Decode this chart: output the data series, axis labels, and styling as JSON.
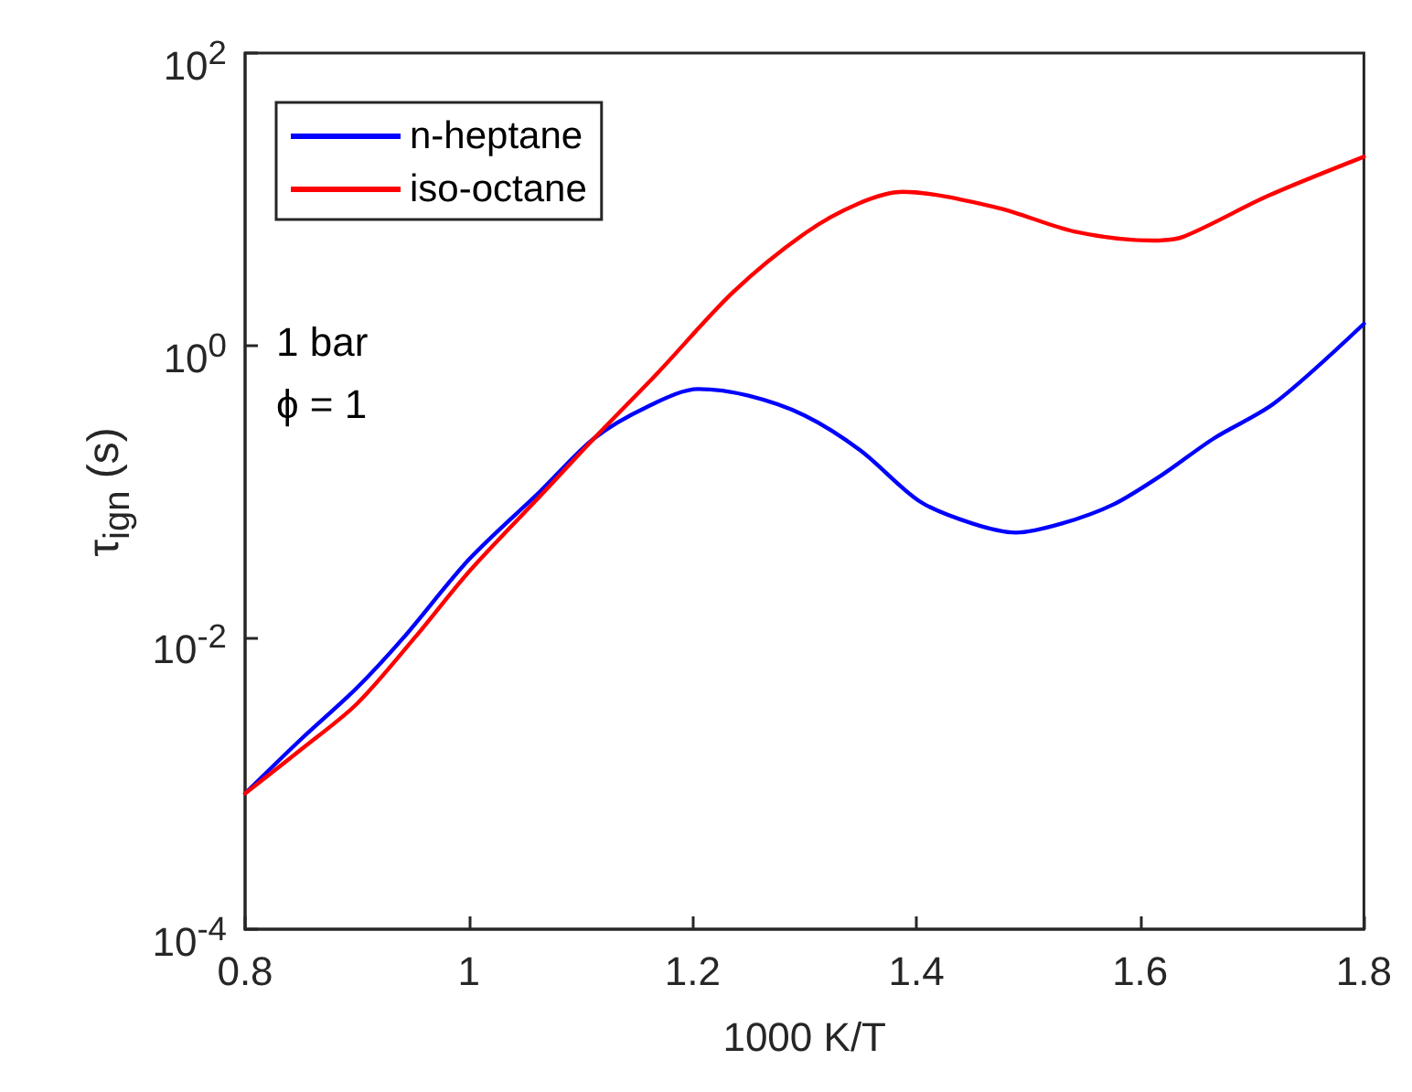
{
  "chart_data": {
    "type": "line",
    "xlabel": "1000 K/T",
    "ylabel": "τ$_{ign}$ (s)",
    "xlim": [
      0.8,
      1.8
    ],
    "xticks": [
      0.8,
      1,
      1.2,
      1.4,
      1.6,
      1.8
    ],
    "ylim": [
      0.0001,
      100
    ],
    "yticks": [
      {
        "value": 0.0001,
        "label": "10$^{-4}$"
      },
      {
        "value": 0.01,
        "label": "10$^{-2}$"
      },
      {
        "value": 1,
        "label": "10$^{0}$"
      },
      {
        "value": 100,
        "label": "10$^{2}$"
      }
    ],
    "log": "y",
    "grid": false,
    "legend": "top left",
    "marker": "none",
    "line_style": "solid",
    "annotations": [
      "1 bar",
      "ϕ = 1"
    ],
    "series": [
      {
        "name": "n-heptane",
        "color": "#0000ff",
        "x": [
          0.8,
          0.85,
          0.9,
          0.942,
          1.0,
          1.064,
          1.112,
          1.16,
          1.205,
          1.25,
          1.3,
          1.35,
          1.403,
          1.45,
          1.489,
          1.53,
          1.576,
          1.62,
          1.666,
          1.72,
          1.8
        ],
        "values": [
          0.00085,
          0.002,
          0.0045,
          0.01,
          0.034,
          0.1,
          0.23,
          0.38,
          0.5,
          0.45,
          0.33,
          0.19,
          0.085,
          0.06,
          0.052,
          0.06,
          0.081,
          0.13,
          0.23,
          0.4,
          1.4
        ]
      },
      {
        "name": "iso-octane",
        "color": "#ff0000",
        "x": [
          0.8,
          0.85,
          0.9,
          0.952,
          1.0,
          1.064,
          1.112,
          1.17,
          1.236,
          1.3,
          1.348,
          1.388,
          1.473,
          1.541,
          1.611,
          1.638,
          1.714,
          1.8
        ],
        "values": [
          0.00085,
          0.0017,
          0.0035,
          0.01,
          0.028,
          0.093,
          0.23,
          0.66,
          2.3,
          5.8,
          9.3,
          11.2,
          8.7,
          6.0,
          5.2,
          5.5,
          10.5,
          19.5
        ]
      }
    ]
  }
}
